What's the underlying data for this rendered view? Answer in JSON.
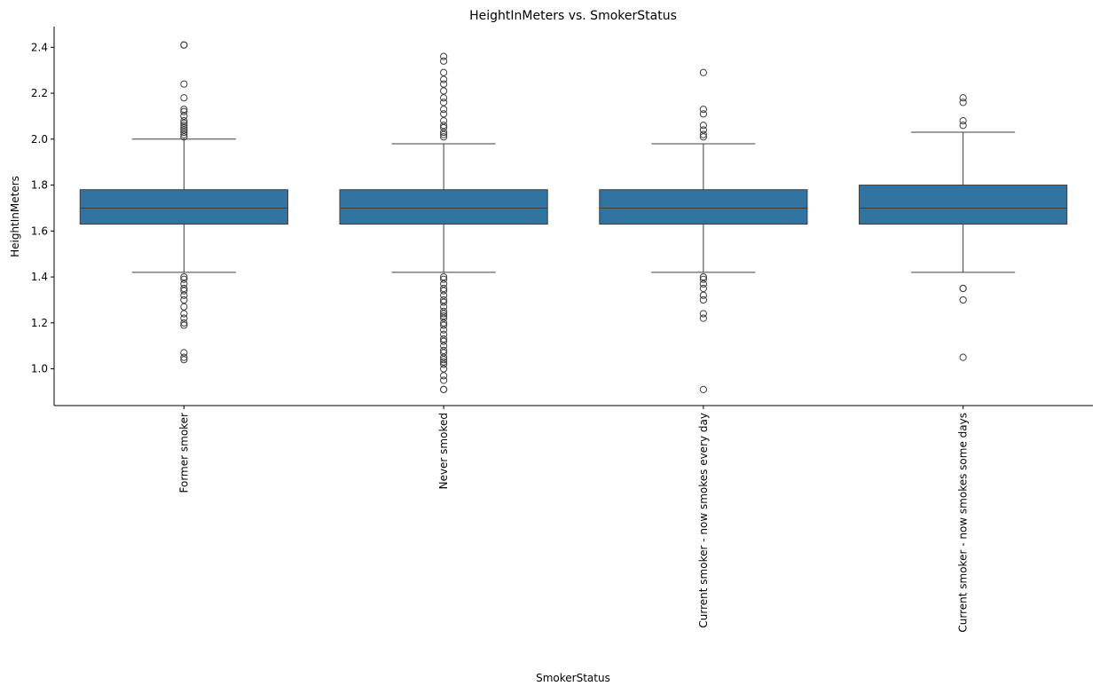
{
  "chart_data": {
    "type": "box",
    "title": "HeightInMeters vs. SmokerStatus",
    "xlabel": "SmokerStatus",
    "ylabel": "HeightInMeters",
    "ylim": [
      0.84,
      2.49
    ],
    "yticks": [
      1.0,
      1.2,
      1.4,
      1.6,
      1.8,
      2.0,
      2.2,
      2.4
    ],
    "ytick_labels": [
      "1.0",
      "1.2",
      "1.4",
      "1.6",
      "1.8",
      "2.0",
      "2.2",
      "2.4"
    ],
    "grid": false,
    "box_color": "#3274a1",
    "line_color": "#3d3d3d",
    "categories": [
      {
        "label": "Former smoker",
        "q1": 1.63,
        "median": 1.7,
        "q3": 1.78,
        "whisker_low": 1.42,
        "whisker_high": 2.0,
        "outliers": [
          2.41,
          2.41,
          2.24,
          2.18,
          2.13,
          2.12,
          2.1,
          2.08,
          2.07,
          2.06,
          2.05,
          2.04,
          2.03,
          2.02,
          2.01,
          1.4,
          1.39,
          1.37,
          1.35,
          1.34,
          1.32,
          1.3,
          1.27,
          1.24,
          1.22,
          1.2,
          1.19,
          1.07,
          1.05,
          1.04
        ]
      },
      {
        "label": "Never smoked",
        "q1": 1.63,
        "median": 1.7,
        "q3": 1.78,
        "whisker_low": 1.42,
        "whisker_high": 1.98,
        "outliers": [
          2.36,
          2.34,
          2.29,
          2.26,
          2.24,
          2.21,
          2.18,
          2.16,
          2.13,
          2.11,
          2.08,
          2.06,
          2.05,
          2.03,
          2.02,
          2.01,
          1.4,
          1.39,
          1.37,
          1.35,
          1.34,
          1.32,
          1.3,
          1.29,
          1.27,
          1.25,
          1.24,
          1.23,
          1.22,
          1.2,
          1.19,
          1.17,
          1.15,
          1.13,
          1.12,
          1.1,
          1.08,
          1.07,
          1.05,
          1.04,
          1.03,
          1.02,
          1.0,
          0.97,
          0.95,
          0.91,
          0.91
        ]
      },
      {
        "label": "Current smoker - now smokes every day",
        "q1": 1.63,
        "median": 1.7,
        "q3": 1.78,
        "whisker_low": 1.42,
        "whisker_high": 1.98,
        "outliers": [
          2.29,
          2.13,
          2.11,
          2.06,
          2.04,
          2.02,
          2.01,
          1.4,
          1.39,
          1.37,
          1.35,
          1.32,
          1.3,
          1.24,
          1.22,
          0.91
        ]
      },
      {
        "label": "Current smoker - now smokes some days",
        "q1": 1.63,
        "median": 1.7,
        "q3": 1.8,
        "whisker_low": 1.42,
        "whisker_high": 2.03,
        "outliers": [
          2.18,
          2.16,
          2.08,
          2.06,
          1.35,
          1.35,
          1.3,
          1.05
        ]
      }
    ]
  }
}
